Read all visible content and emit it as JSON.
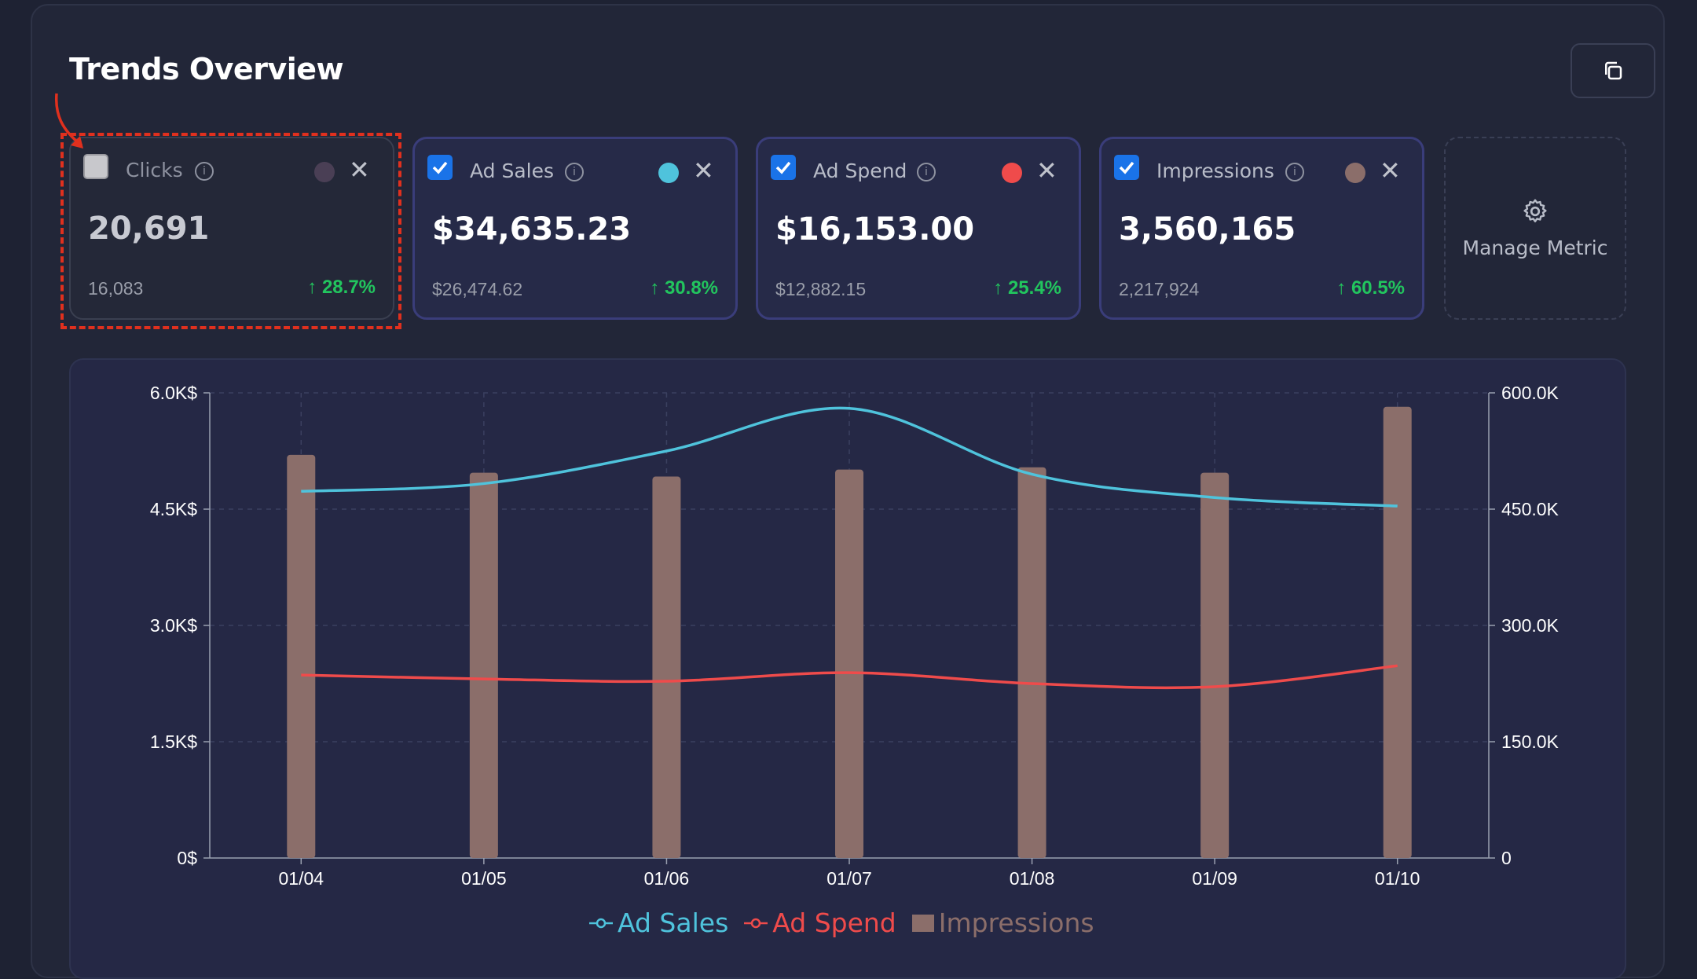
{
  "header": {
    "title": "Trends Overview",
    "copy_icon": "copy-icon"
  },
  "metrics": [
    {
      "label": "Clicks",
      "checked": false,
      "color": "#4a3f55",
      "value": "20,691",
      "previous": "16,083",
      "change": "↑ 28.7%"
    },
    {
      "label": "Ad Sales",
      "checked": true,
      "color": "#4fc3dc",
      "value": "$34,635.23",
      "previous": "$26,474.62",
      "change": "↑ 30.8%"
    },
    {
      "label": "Ad Spend",
      "checked": true,
      "color": "#ef4b4b",
      "value": "$16,153.00",
      "previous": "$12,882.15",
      "change": "↑ 25.4%"
    },
    {
      "label": "Impressions",
      "checked": true,
      "color": "#8b6e6a",
      "value": "3,560,165",
      "previous": "2,217,924",
      "change": "↑ 60.5%"
    }
  ],
  "manage": {
    "label": "Manage Metric",
    "icon": "gear-icon"
  },
  "chart_data": {
    "type": "bar+line",
    "categories": [
      "01/04",
      "01/05",
      "01/06",
      "01/07",
      "01/08",
      "01/09",
      "01/10"
    ],
    "y_left": {
      "ticks": [
        "0$",
        "1.5K$",
        "3.0K$",
        "4.5K$",
        "6.0K$"
      ],
      "ylim": [
        0,
        6000
      ]
    },
    "y_right": {
      "ticks": [
        "0",
        "150.0K",
        "300.0K",
        "450.0K",
        "600.0K"
      ],
      "ylim": [
        0,
        600000
      ]
    },
    "series": [
      {
        "name": "Ad Sales",
        "type": "line",
        "axis": "left",
        "color": "#4fc3dc",
        "values": [
          4730,
          4830,
          5250,
          5800,
          4950,
          4650,
          4540
        ]
      },
      {
        "name": "Ad Spend",
        "type": "line",
        "axis": "left",
        "color": "#ef4b4b",
        "values": [
          2360,
          2310,
          2280,
          2390,
          2250,
          2210,
          2480
        ]
      },
      {
        "name": "Impressions",
        "type": "bar",
        "axis": "right",
        "color": "#8b6e6a",
        "values": [
          520000,
          497000,
          492000,
          501000,
          504000,
          497000,
          582000
        ]
      }
    ],
    "grid": true,
    "legend": "bottom-center"
  }
}
